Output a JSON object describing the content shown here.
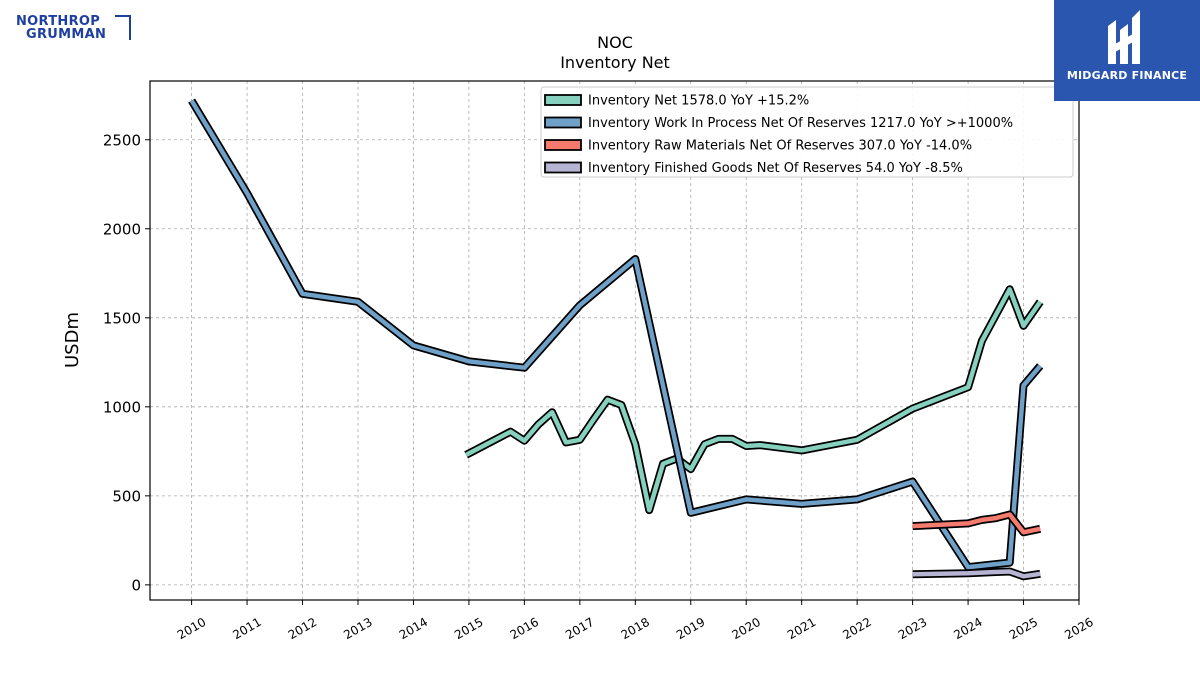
{
  "logos": {
    "left_line1": "NORTHROP",
    "left_line2": "GRUMMAN",
    "right_brand": "MIDGARD FINANCE"
  },
  "colors": {
    "inventory_net": "#86d1bd",
    "work_in_process": "#6fa0c8",
    "raw_materials": "#f47b6e",
    "finished_goods": "#b7b3d3",
    "outline": "#000000",
    "grid": "#aaaaaa",
    "brand_blue": "#2a56b0"
  },
  "chart_data": {
    "type": "line",
    "title": "NOC",
    "subtitle": "Inventory Net",
    "xlabel": "",
    "ylabel": "USDm",
    "xlim": [
      2009.25,
      2026.0
    ],
    "ylim": [
      -85,
      2830
    ],
    "x_ticks": [
      "2010",
      "2011",
      "2012",
      "2013",
      "2014",
      "2015",
      "2016",
      "2017",
      "2018",
      "2019",
      "2020",
      "2021",
      "2022",
      "2023",
      "2024",
      "2025",
      "2026"
    ],
    "y_ticks": [
      0,
      500,
      1000,
      1500,
      2000,
      2500
    ],
    "grid": true,
    "legend_position": "top-right",
    "series": [
      {
        "name": "Inventory Net",
        "legend": "Inventory Net  1578.0 YoY +15.2%",
        "color_key": "inventory_net",
        "points": [
          [
            2014.95,
            730
          ],
          [
            2015.75,
            860
          ],
          [
            2016.0,
            810
          ],
          [
            2016.25,
            900
          ],
          [
            2016.5,
            970
          ],
          [
            2016.75,
            800
          ],
          [
            2017.0,
            815
          ],
          [
            2017.25,
            930
          ],
          [
            2017.5,
            1040
          ],
          [
            2017.75,
            1010
          ],
          [
            2018.0,
            790
          ],
          [
            2018.25,
            420
          ],
          [
            2018.5,
            680
          ],
          [
            2018.75,
            710
          ],
          [
            2019.0,
            650
          ],
          [
            2019.25,
            790
          ],
          [
            2019.5,
            820
          ],
          [
            2019.75,
            820
          ],
          [
            2020.0,
            780
          ],
          [
            2020.25,
            785
          ],
          [
            2021.0,
            755
          ],
          [
            2022.0,
            815
          ],
          [
            2023.0,
            990
          ],
          [
            2024.0,
            1110
          ],
          [
            2024.25,
            1370
          ],
          [
            2024.75,
            1660
          ],
          [
            2025.0,
            1455
          ],
          [
            2025.3,
            1590
          ]
        ]
      },
      {
        "name": "Inventory Work In Process Net Of Reserves",
        "legend": "Inventory Work In Process Net Of Reserves  1217.0 YoY >+1000%",
        "color_key": "work_in_process",
        "points": [
          [
            2010.0,
            2720
          ],
          [
            2011.0,
            2200
          ],
          [
            2012.0,
            1635
          ],
          [
            2013.0,
            1590
          ],
          [
            2014.0,
            1345
          ],
          [
            2015.0,
            1255
          ],
          [
            2016.0,
            1220
          ],
          [
            2017.0,
            1570
          ],
          [
            2018.0,
            1830
          ],
          [
            2019.0,
            405
          ],
          [
            2020.0,
            480
          ],
          [
            2021.0,
            455
          ],
          [
            2022.0,
            480
          ],
          [
            2023.0,
            580
          ],
          [
            2024.0,
            100
          ],
          [
            2024.75,
            125
          ],
          [
            2025.0,
            1120
          ],
          [
            2025.3,
            1230
          ]
        ]
      },
      {
        "name": "Inventory Raw Materials Net Of Reserves",
        "legend": "Inventory Raw Materials Net Of Reserves  307.0 YoY -14.0%",
        "color_key": "raw_materials",
        "points": [
          [
            2023.0,
            330
          ],
          [
            2024.0,
            345
          ],
          [
            2024.25,
            365
          ],
          [
            2024.5,
            375
          ],
          [
            2024.75,
            395
          ],
          [
            2025.0,
            295
          ],
          [
            2025.3,
            315
          ]
        ]
      },
      {
        "name": "Inventory Finished Goods Net Of Reserves",
        "legend": "Inventory Finished Goods Net Of Reserves  54.0 YoY -8.5%",
        "color_key": "finished_goods",
        "points": [
          [
            2023.0,
            60
          ],
          [
            2024.0,
            65
          ],
          [
            2024.5,
            72
          ],
          [
            2024.75,
            75
          ],
          [
            2025.0,
            48
          ],
          [
            2025.3,
            62
          ]
        ]
      }
    ]
  }
}
